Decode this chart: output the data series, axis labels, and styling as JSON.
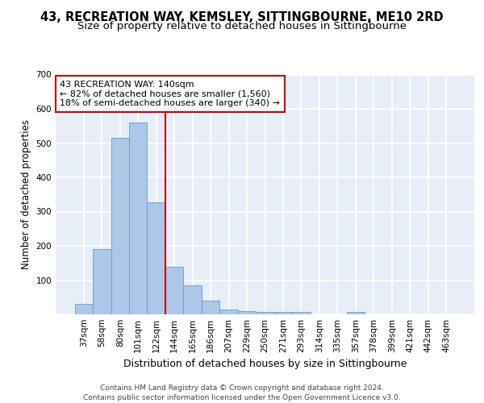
{
  "title_line1": "43, RECREATION WAY, KEMSLEY, SITTINGBOURNE, ME10 2RD",
  "title_line2": "Size of property relative to detached houses in Sittingbourne",
  "xlabel": "Distribution of detached houses by size in Sittingbourne",
  "ylabel": "Number of detached properties",
  "categories": [
    "37sqm",
    "58sqm",
    "80sqm",
    "101sqm",
    "122sqm",
    "144sqm",
    "165sqm",
    "186sqm",
    "207sqm",
    "229sqm",
    "250sqm",
    "271sqm",
    "293sqm",
    "314sqm",
    "335sqm",
    "357sqm",
    "378sqm",
    "399sqm",
    "421sqm",
    "442sqm",
    "463sqm"
  ],
  "values": [
    30,
    190,
    515,
    560,
    328,
    140,
    85,
    40,
    13,
    10,
    8,
    8,
    8,
    0,
    0,
    7,
    0,
    0,
    0,
    0,
    0
  ],
  "bar_color": "#aec6e8",
  "bar_edgecolor": "#5a9fd4",
  "vline_color": "#cc0000",
  "annotation_text": "43 RECREATION WAY: 140sqm\n← 82% of detached houses are smaller (1,560)\n18% of semi-detached houses are larger (340) →",
  "annotation_box_color": "#ffffff",
  "annotation_box_edgecolor": "#cc0000",
  "ylim": [
    0,
    700
  ],
  "yticks": [
    0,
    100,
    200,
    300,
    400,
    500,
    600,
    700
  ],
  "background_color": "#e8eef8",
  "grid_color": "#ffffff",
  "footer": "Contains HM Land Registry data © Crown copyright and database right 2024.\nContains public sector information licensed under the Open Government Licence v3.0.",
  "title_fontsize": 10.5,
  "subtitle_fontsize": 9.5,
  "axis_label_fontsize": 8.5,
  "tick_fontsize": 7.5,
  "annotation_fontsize": 8,
  "footer_fontsize": 6.5
}
